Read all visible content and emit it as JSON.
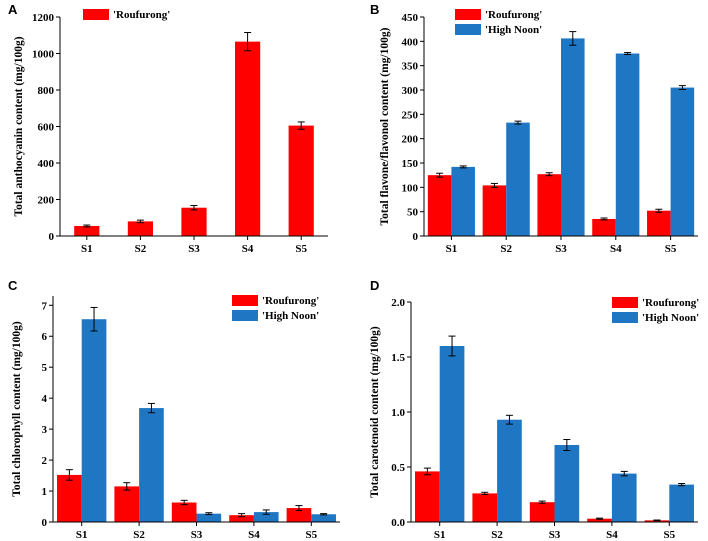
{
  "colors": {
    "roufurong": "#ff0000",
    "highnoon": "#1f77c4"
  },
  "chart_data": [
    {
      "panel": "A",
      "type": "bar",
      "ylabel": "Total anthocyanin content (mg/100g)",
      "categories": [
        "S1",
        "S2",
        "S3",
        "S4",
        "S5"
      ],
      "ylim": [
        0,
        1200
      ],
      "yticks": [
        0,
        200,
        400,
        600,
        800,
        1000,
        1200
      ],
      "series": [
        {
          "name": "'Roufurong'",
          "values": [
            55,
            80,
            155,
            1065,
            605
          ],
          "errors": [
            5,
            7,
            12,
            50,
            20
          ]
        }
      ]
    },
    {
      "panel": "B",
      "type": "bar",
      "ylabel": "Total flavone/flavonol content (mg/100g)",
      "categories": [
        "S1",
        "S2",
        "S3",
        "S4",
        "S5"
      ],
      "ylim": [
        0,
        450
      ],
      "yticks": [
        0,
        50,
        100,
        150,
        200,
        250,
        300,
        350,
        400,
        450
      ],
      "series": [
        {
          "name": "'Roufurong'",
          "values": [
            125,
            104,
            127,
            35,
            52
          ],
          "errors": [
            4,
            4,
            3,
            2,
            3
          ]
        },
        {
          "name": "'High Noon'",
          "values": [
            142,
            233,
            406,
            375,
            305
          ],
          "errors": [
            2,
            3,
            14,
            2,
            4
          ]
        }
      ]
    },
    {
      "panel": "C",
      "type": "bar",
      "ylabel": "Total chlorophyll content (mg/100g)",
      "categories": [
        "S1",
        "S2",
        "S3",
        "S4",
        "S5"
      ],
      "ylim": [
        0,
        7.3
      ],
      "yticks": [
        0,
        1,
        2,
        3,
        4,
        5,
        6,
        7
      ],
      "series": [
        {
          "name": "'Roufurong'",
          "values": [
            1.52,
            1.15,
            0.63,
            0.22,
            0.45
          ],
          "errors": [
            0.17,
            0.12,
            0.07,
            0.05,
            0.08
          ]
        },
        {
          "name": "'High Noon'",
          "values": [
            6.55,
            3.68,
            0.27,
            0.32,
            0.25
          ],
          "errors": [
            0.38,
            0.15,
            0.03,
            0.07,
            0.02
          ]
        }
      ]
    },
    {
      "panel": "D",
      "type": "bar",
      "ylabel": "Total carotenoid content (mg/100g)",
      "categories": [
        "S1",
        "S2",
        "S3",
        "S4",
        "S5"
      ],
      "ylim": [
        0,
        2.0
      ],
      "yticks": [
        "0.0",
        "0.5",
        "1.0",
        "1.5",
        "2.0"
      ],
      "series": [
        {
          "name": "'Roufurong'",
          "values": [
            0.46,
            0.26,
            0.18,
            0.03,
            0.015
          ],
          "errors": [
            0.03,
            0.01,
            0.01,
            0.005,
            0.003
          ]
        },
        {
          "name": "'High Noon'",
          "values": [
            1.6,
            0.93,
            0.7,
            0.44,
            0.34
          ],
          "errors": [
            0.09,
            0.04,
            0.05,
            0.02,
            0.01
          ]
        }
      ]
    }
  ]
}
